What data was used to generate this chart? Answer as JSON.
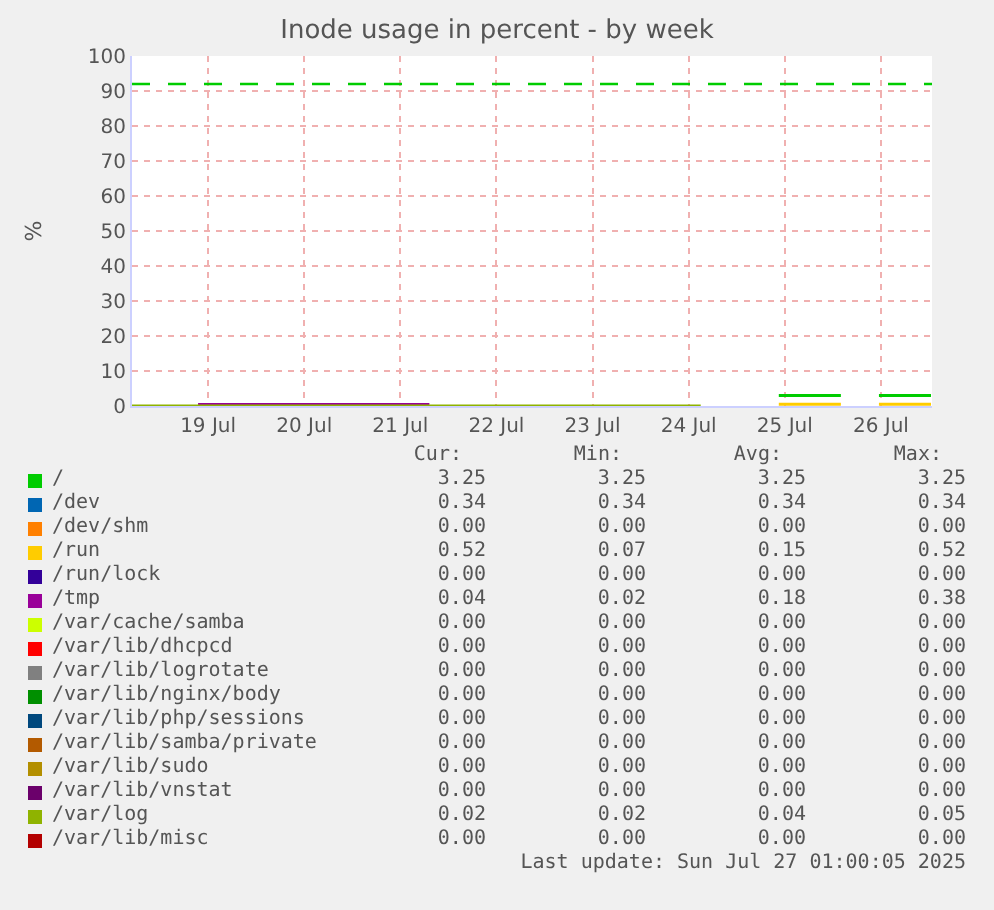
{
  "chart_data": {
    "type": "line",
    "title": "Inode usage in percent - by week",
    "ylabel": "%",
    "xlim": [
      "2025-07-18T17:00",
      "2025-07-27T00:45"
    ],
    "xticks": [
      {
        "value": "2025-07-19T12:00",
        "label": "19 Jul"
      },
      {
        "value": "2025-07-20T12:00",
        "label": "20 Jul"
      },
      {
        "value": "2025-07-21T12:00",
        "label": "21 Jul"
      },
      {
        "value": "2025-07-22T12:00",
        "label": "22 Jul"
      },
      {
        "value": "2025-07-23T12:00",
        "label": "23 Jul"
      },
      {
        "value": "2025-07-24T12:00",
        "label": "24 Jul"
      },
      {
        "value": "2025-07-25T12:00",
        "label": "25 Jul"
      },
      {
        "value": "2025-07-26T12:00",
        "label": "26 Jul"
      }
    ],
    "ylim": [
      0,
      100
    ],
    "yticks": [
      0,
      10,
      20,
      30,
      40,
      50,
      60,
      70,
      80,
      90,
      100
    ],
    "grid": true,
    "legend": "bottom",
    "ref_lines": [
      {
        "axis": "y",
        "value": 92,
        "color": "#00cc00",
        "line_style": "dashed"
      }
    ],
    "series": [
      {
        "name": "/",
        "color": "#00cc00",
        "x": [
          "2025-07-25T10:30",
          "2025-07-26T02:00",
          "2025-07-26T07:00",
          "2025-07-26T11:30",
          "2025-07-27T00:30"
        ],
        "values": [
          3,
          3,
          null,
          3,
          3
        ]
      },
      {
        "name": "/dev",
        "color": "#0066b3"
      },
      {
        "name": "/dev/shm",
        "color": "#ff8000"
      },
      {
        "name": "/run",
        "color": "#ffcc00",
        "x": [
          "2025-07-25T10:30",
          "2025-07-26T02:00",
          "2025-07-26T07:00",
          "2025-07-26T11:30",
          "2025-07-27T00:30"
        ],
        "values": [
          0.5,
          0.5,
          null,
          0.5,
          0.5
        ]
      },
      {
        "name": "/run/lock",
        "color": "#330099"
      },
      {
        "name": "/tmp",
        "color": "#990099",
        "x": [
          "2025-07-19T09:30",
          "2025-07-21T19:15"
        ],
        "values": [
          0.4,
          0.4
        ]
      },
      {
        "name": "/var/cache/samba",
        "color": "#ccff00"
      },
      {
        "name": "/var/lib/dhcpcd",
        "color": "#ff0000"
      },
      {
        "name": "/var/lib/logrotate",
        "color": "#808080"
      },
      {
        "name": "/var/lib/nginx/body",
        "color": "#008f00"
      },
      {
        "name": "/var/lib/php/sessions",
        "color": "#00487d"
      },
      {
        "name": "/var/lib/samba/private",
        "color": "#b35a00"
      },
      {
        "name": "/var/lib/sudo",
        "color": "#b38f00"
      },
      {
        "name": "/var/lib/vnstat",
        "color": "#6b006b"
      },
      {
        "name": "/var/log",
        "color": "#8fb300",
        "x": [
          "2025-07-18T17:00",
          "2025-07-24T15:00"
        ],
        "values": [
          0,
          0
        ]
      },
      {
        "name": "/var/lib/misc",
        "color": "#b30000"
      }
    ],
    "annotations": [
      "Cur:",
      "Min:",
      "Avg:",
      "Max:",
      "3.25",
      "3.25",
      "3.25",
      "3.25",
      "0.34",
      "0.34",
      "0.34",
      "0.34",
      "0.00",
      "0.00",
      "0.00",
      "0.00",
      "0.52",
      "0.07",
      "0.15",
      "0.52",
      "0.00",
      "0.00",
      "0.00",
      "0.00",
      "0.04",
      "0.02",
      "0.18",
      "0.38",
      "0.00",
      "0.00",
      "0.00",
      "0.00",
      "0.00",
      "0.00",
      "0.00",
      "0.00",
      "0.00",
      "0.00",
      "0.00",
      "0.00",
      "0.00",
      "0.00",
      "0.00",
      "0.00",
      "0.00",
      "0.00",
      "0.00",
      "0.00",
      "0.00",
      "0.00",
      "0.00",
      "0.00",
      "0.00",
      "0.00",
      "0.00",
      "0.00",
      "0.00",
      "0.00",
      "0.00",
      "0.00",
      "0.02",
      "0.02",
      "0.04",
      "0.05",
      "0.00",
      "0.00",
      "0.00",
      "0.00",
      "Last update: Sun Jul 27 01:00:05 2025"
    ]
  }
}
